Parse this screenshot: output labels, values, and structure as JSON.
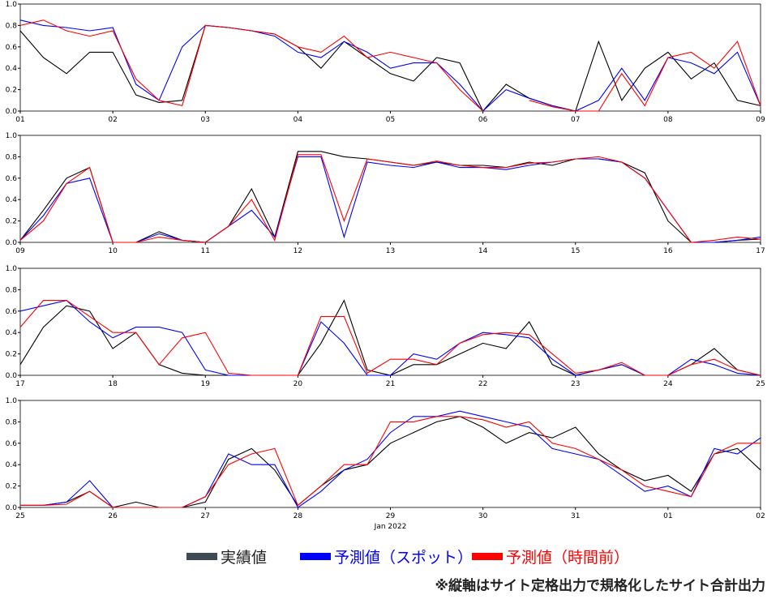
{
  "chart_data": [
    {
      "type": "line",
      "x": [
        0,
        6,
        12,
        18,
        24,
        30,
        36,
        42,
        48,
        54,
        60,
        66,
        72,
        78,
        84,
        90,
        96,
        102,
        108,
        114,
        120,
        126,
        132,
        138,
        144,
        150,
        156,
        162,
        168,
        174,
        180,
        186,
        192
      ],
      "xlim": [
        0,
        192
      ],
      "xticks": [
        {
          "value": 0,
          "label": "01"
        },
        {
          "value": 24,
          "label": "02"
        },
        {
          "value": 48,
          "label": "03"
        },
        {
          "value": 72,
          "label": "04"
        },
        {
          "value": 96,
          "label": "05"
        },
        {
          "value": 120,
          "label": "06"
        },
        {
          "value": 144,
          "label": "07"
        },
        {
          "value": 168,
          "label": "08"
        },
        {
          "value": 192,
          "label": "09"
        }
      ],
      "ylim": [
        0,
        1
      ],
      "yticks": [
        {
          "value": 0,
          "label": "0.0"
        },
        {
          "value": 0.2,
          "label": "0.2"
        },
        {
          "value": 0.4,
          "label": "0.4"
        },
        {
          "value": 0.6,
          "label": "0.6"
        },
        {
          "value": 0.8,
          "label": "0.8"
        },
        {
          "value": 1,
          "label": "1.0"
        }
      ],
      "series": [
        {
          "name": "実績値",
          "color": "#000000",
          "values": [
            0.75,
            0.5,
            0.35,
            0.55,
            0.55,
            0.15,
            0.08,
            0.1,
            0.8,
            0.78,
            0.75,
            0.72,
            0.6,
            0.4,
            0.65,
            0.5,
            0.35,
            0.28,
            0.5,
            0.45,
            0,
            0.25,
            0.12,
            0.05,
            0,
            0.65,
            0.1,
            0.4,
            0.55,
            0.3,
            0.45,
            0.1,
            0.05
          ]
        },
        {
          "name": "予測値（スポット）",
          "color": "#0000ff",
          "values": [
            0.85,
            0.8,
            0.78,
            0.75,
            0.78,
            0.25,
            0.1,
            0.6,
            0.8,
            0.78,
            0.75,
            0.7,
            0.55,
            0.5,
            0.65,
            0.55,
            0.4,
            0.45,
            0.45,
            0.25,
            0,
            0.2,
            0.12,
            0.05,
            0,
            0.1,
            0.4,
            0.1,
            0.5,
            0.45,
            0.35,
            0.55,
            0.05
          ]
        },
        {
          "name": "予測値（時間前）",
          "color": "#ff0000",
          "values": [
            0.8,
            0.85,
            0.75,
            0.7,
            0.75,
            0.3,
            0.1,
            0.05,
            0.8,
            0.78,
            0.75,
            0.72,
            0.6,
            0.55,
            0.7,
            0.5,
            0.55,
            0.5,
            0.45,
            0.2,
            0,
            null,
            0.1,
            0.04,
            0,
            0,
            0.35,
            0.05,
            0.5,
            0.55,
            0.4,
            0.65,
            0.05
          ]
        }
      ]
    },
    {
      "type": "line",
      "x": [
        0,
        6,
        12,
        18,
        24,
        30,
        36,
        42,
        48,
        54,
        60,
        66,
        72,
        78,
        84,
        90,
        96,
        102,
        108,
        114,
        120,
        126,
        132,
        138,
        144,
        150,
        156,
        162,
        168,
        174,
        180,
        186,
        192
      ],
      "xlim": [
        0,
        192
      ],
      "xticks": [
        {
          "value": 0,
          "label": "09"
        },
        {
          "value": 24,
          "label": "10"
        },
        {
          "value": 48,
          "label": "11"
        },
        {
          "value": 72,
          "label": "12"
        },
        {
          "value": 96,
          "label": "13"
        },
        {
          "value": 120,
          "label": "14"
        },
        {
          "value": 144,
          "label": "15"
        },
        {
          "value": 168,
          "label": "16"
        },
        {
          "value": 192,
          "label": "17"
        }
      ],
      "ylim": [
        0,
        1
      ],
      "yticks": [
        {
          "value": 0,
          "label": "0.0"
        },
        {
          "value": 0.2,
          "label": "0.2"
        },
        {
          "value": 0.4,
          "label": "0.4"
        },
        {
          "value": 0.6,
          "label": "0.6"
        },
        {
          "value": 0.8,
          "label": "0.8"
        },
        {
          "value": 1,
          "label": "1.0"
        }
      ],
      "series": [
        {
          "color": "#000000",
          "values": [
            0.02,
            0.3,
            0.6,
            0.7,
            0,
            0,
            0.1,
            0.02,
            0,
            0.15,
            0.5,
            0.05,
            0.85,
            0.85,
            0.8,
            0.78,
            0.75,
            0.72,
            0.75,
            0.72,
            0.72,
            0.7,
            0.75,
            0.72,
            0.78,
            0.78,
            0.75,
            0.65,
            0.2,
            0,
            0,
            0.02,
            0.03
          ]
        },
        {
          "color": "#0000ff",
          "values": [
            0.02,
            0.25,
            0.55,
            0.6,
            0,
            0,
            0.08,
            0.02,
            0,
            0.15,
            0.3,
            0.05,
            0.8,
            0.8,
            0.05,
            0.75,
            0.72,
            0.7,
            0.75,
            0.7,
            0.7,
            0.68,
            0.72,
            0.75,
            0.78,
            0.78,
            0.75,
            0.6,
            0.3,
            0,
            0,
            0.02,
            0.05
          ]
        },
        {
          "color": "#ff0000",
          "values": [
            0.02,
            0.2,
            0.55,
            0.7,
            0,
            0,
            0.05,
            0.02,
            0,
            0.15,
            0.4,
            0.02,
            0.82,
            0.82,
            0.2,
            0.78,
            0.75,
            0.72,
            0.76,
            0.72,
            0.7,
            0.7,
            0.74,
            0.75,
            0.78,
            0.8,
            0.75,
            0.6,
            0.3,
            0,
            0.02,
            0.05,
            0.03
          ]
        }
      ]
    },
    {
      "type": "line",
      "x": [
        0,
        6,
        12,
        18,
        24,
        30,
        36,
        42,
        48,
        54,
        60,
        66,
        72,
        78,
        84,
        90,
        96,
        102,
        108,
        114,
        120,
        126,
        132,
        138,
        144,
        150,
        156,
        162,
        168,
        174,
        180,
        186,
        192
      ],
      "xlim": [
        0,
        192
      ],
      "xticks": [
        {
          "value": 0,
          "label": "17"
        },
        {
          "value": 24,
          "label": "18"
        },
        {
          "value": 48,
          "label": "19"
        },
        {
          "value": 72,
          "label": "20"
        },
        {
          "value": 96,
          "label": "21"
        },
        {
          "value": 120,
          "label": "22"
        },
        {
          "value": 144,
          "label": "23"
        },
        {
          "value": 168,
          "label": "24"
        },
        {
          "value": 192,
          "label": "25"
        }
      ],
      "ylim": [
        0,
        1
      ],
      "yticks": [
        {
          "value": 0,
          "label": "0.0"
        },
        {
          "value": 0.2,
          "label": "0.2"
        },
        {
          "value": 0.4,
          "label": "0.4"
        },
        {
          "value": 0.6,
          "label": "0.6"
        },
        {
          "value": 0.8,
          "label": "0.8"
        },
        {
          "value": 1,
          "label": "1.0"
        }
      ],
      "series": [
        {
          "color": "#000000",
          "values": [
            0.1,
            0.45,
            0.65,
            0.6,
            0.25,
            0.4,
            0.1,
            0.02,
            0,
            0,
            0,
            0,
            0,
            0.3,
            0.7,
            0.05,
            0,
            0.1,
            0.1,
            0.2,
            0.3,
            0.25,
            0.5,
            0.1,
            0,
            0.05,
            0.1,
            0,
            0,
            0.1,
            0.25,
            0.05,
            0
          ]
        },
        {
          "color": "#0000ff",
          "values": [
            0.6,
            0.65,
            0.7,
            0.5,
            0.35,
            0.45,
            0.45,
            0.4,
            0.05,
            0,
            0,
            0,
            0,
            0.5,
            0.3,
            0,
            0,
            0.2,
            0.15,
            0.3,
            0.4,
            0.38,
            0.35,
            0.15,
            0,
            0.05,
            0.1,
            0,
            0,
            0.15,
            0.1,
            0.02,
            0
          ]
        },
        {
          "color": "#ff0000",
          "values": [
            0.45,
            0.7,
            0.7,
            0.55,
            0.4,
            0.4,
            0.1,
            0.35,
            0.4,
            0.02,
            0,
            0,
            0,
            0.55,
            0.55,
            0.02,
            0.15,
            0.15,
            0.1,
            0.3,
            0.38,
            0.4,
            0.38,
            0.2,
            0.02,
            0.05,
            0.12,
            0,
            0,
            0.1,
            0.15,
            0.05,
            0
          ]
        }
      ]
    },
    {
      "type": "line",
      "x": [
        0,
        6,
        12,
        18,
        24,
        30,
        36,
        42,
        48,
        54,
        60,
        66,
        72,
        78,
        84,
        90,
        96,
        102,
        108,
        114,
        120,
        126,
        132,
        138,
        144,
        150,
        156,
        162,
        168,
        174,
        180,
        186,
        192
      ],
      "xlim": [
        0,
        192
      ],
      "xticks": [
        {
          "value": 0,
          "label": "25"
        },
        {
          "value": 24,
          "label": "26"
        },
        {
          "value": 48,
          "label": "27"
        },
        {
          "value": 72,
          "label": "28"
        },
        {
          "value": 96,
          "label": "29"
        },
        {
          "value": 120,
          "label": "30"
        },
        {
          "value": 144,
          "label": "31"
        },
        {
          "value": 168,
          "label": "01"
        },
        {
          "value": 192,
          "label": "02"
        }
      ],
      "xlabel": "Jan 2022",
      "ylim": [
        0,
        1
      ],
      "yticks": [
        {
          "value": 0,
          "label": "0.0"
        },
        {
          "value": 0.2,
          "label": "0.2"
        },
        {
          "value": 0.4,
          "label": "0.4"
        },
        {
          "value": 0.6,
          "label": "0.6"
        },
        {
          "value": 0.8,
          "label": "0.8"
        },
        {
          "value": 1,
          "label": "1.0"
        }
      ],
      "series": [
        {
          "color": "#000000",
          "values": [
            0.02,
            0.02,
            0.05,
            0.15,
            0,
            0.05,
            0,
            0,
            0.05,
            0.45,
            0.55,
            0.35,
            0.02,
            0.2,
            0.35,
            0.4,
            0.6,
            0.7,
            0.8,
            0.85,
            0.75,
            0.6,
            0.7,
            0.65,
            0.75,
            0.5,
            0.35,
            0.25,
            0.3,
            0.15,
            0.5,
            0.55,
            0.35
          ]
        },
        {
          "color": "#0000ff",
          "values": [
            0.02,
            0.02,
            0.05,
            0.25,
            0,
            0,
            0,
            0,
            0.1,
            0.5,
            0.4,
            0.4,
            0,
            0.15,
            0.35,
            0.45,
            0.7,
            0.85,
            0.85,
            0.9,
            0.85,
            0.8,
            0.75,
            0.55,
            0.5,
            0.45,
            0.3,
            0.15,
            0.2,
            0.1,
            0.55,
            0.5,
            0.65
          ]
        },
        {
          "color": "#ff0000",
          "values": [
            0.02,
            0.02,
            0.03,
            0.15,
            0,
            0,
            0,
            0,
            0.1,
            0.4,
            0.5,
            0.55,
            0.02,
            0.2,
            0.4,
            0.4,
            0.8,
            0.8,
            0.85,
            0.85,
            0.82,
            0.75,
            0.8,
            0.6,
            0.55,
            0.45,
            0.35,
            0.2,
            0.15,
            0.1,
            0.5,
            0.6,
            0.6
          ]
        }
      ]
    }
  ],
  "note": "※縦軸はサイト定格出力で規格化したサイト合計出力"
}
